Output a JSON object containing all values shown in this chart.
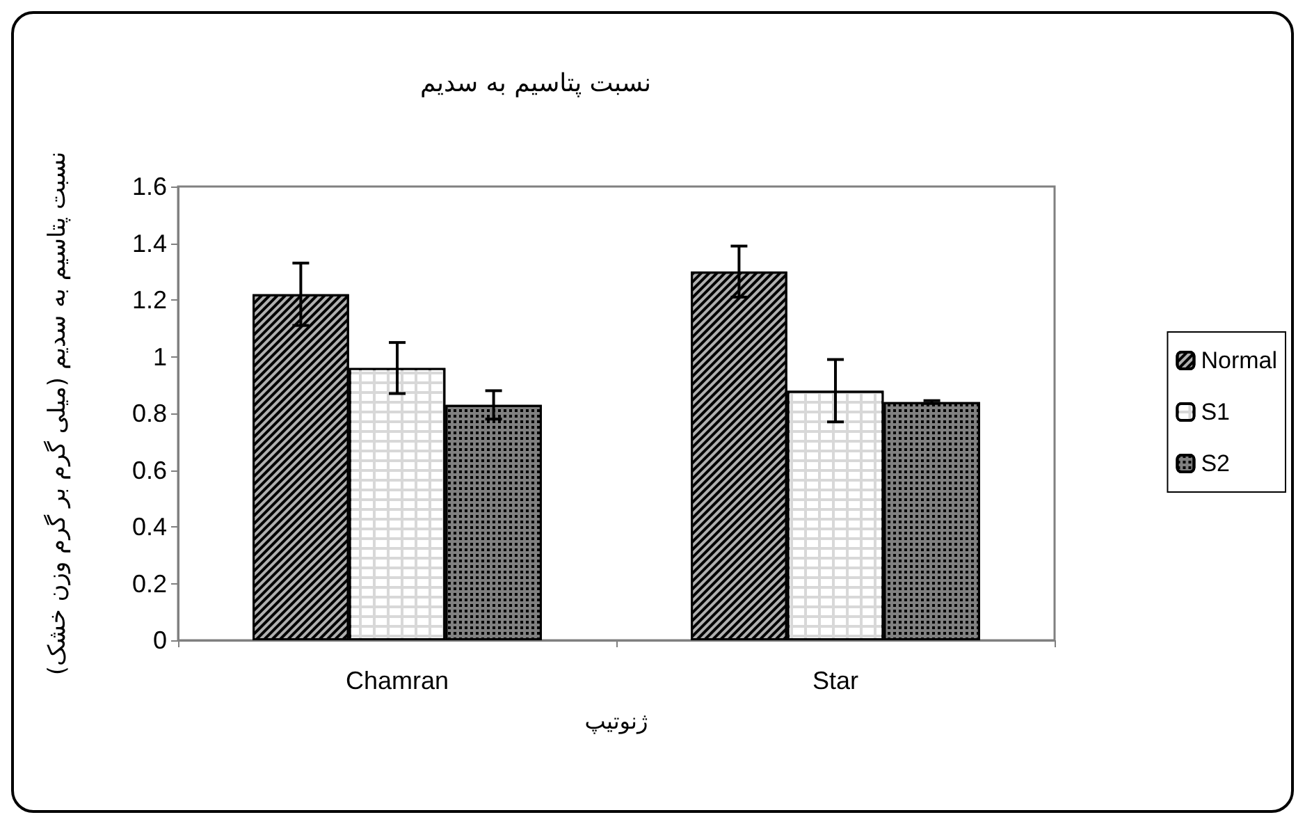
{
  "chart_data": {
    "type": "bar",
    "title": "نسبت پتاسیم به سدیم",
    "xlabel": "ژنوتیپ",
    "ylabel": "نسبت پتاسیم به سدیم (میلی گرم بر گرم وزن خشک)",
    "categories": [
      "Chamran",
      "Star"
    ],
    "series": [
      {
        "name": "Normal",
        "color": "#b0b0b0",
        "values": [
          1.22,
          1.3
        ],
        "errors": [
          0.11,
          0.09
        ]
      },
      {
        "name": "S1",
        "color": "#d8d8d8",
        "values": [
          0.96,
          0.88
        ],
        "errors": [
          0.09,
          0.11
        ]
      },
      {
        "name": "S2",
        "color": "#808080",
        "values": [
          0.83,
          0.84
        ],
        "errors": [
          0.05,
          0.005
        ]
      }
    ],
    "ylim": [
      0,
      1.6
    ],
    "yticks": [
      0,
      0.2,
      0.4,
      0.6,
      0.8,
      1,
      1.2,
      1.4,
      1.6
    ],
    "grid": false,
    "legend": "right"
  }
}
